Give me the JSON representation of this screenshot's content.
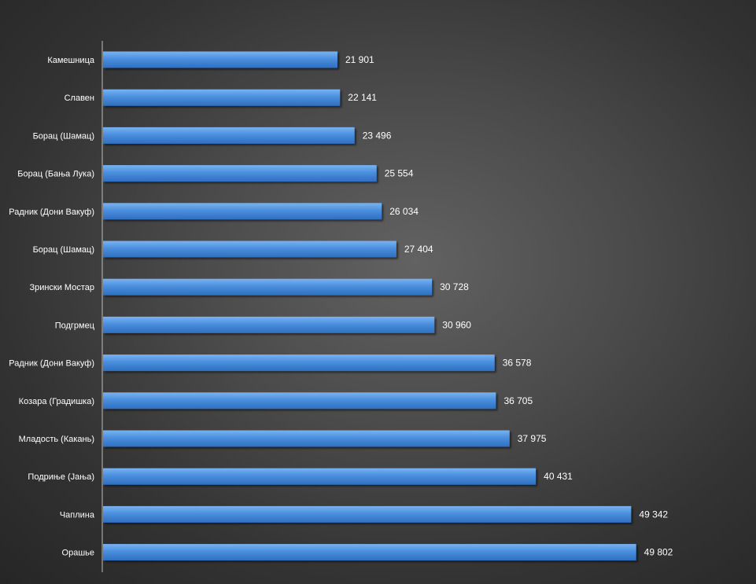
{
  "chart_data": {
    "type": "bar",
    "orientation": "horizontal",
    "title": "",
    "xlabel": "",
    "ylabel": "",
    "xlim": [
      0,
      58000
    ],
    "grid": false,
    "legend": "none",
    "bar_color": "#4a8fde",
    "categories": [
      "Камешница",
      "Славен",
      "Борац (Шамац)",
      "Борац (Бања Лука)",
      "Радник (Дони Вакуф)",
      "Борац (Шамац)",
      "Зрински Мостар",
      "Подгрмец",
      "Радник (Дони Вакуф)",
      "Козара (Градишка)",
      "Младость (Какань)",
      "Подриње (Јања)",
      "Чаплина",
      "Орашье"
    ],
    "values": [
      21901,
      22141,
      23496,
      25554,
      26034,
      27404,
      30728,
      30960,
      36578,
      36705,
      37975,
      40431,
      49342,
      49802
    ],
    "value_labels": [
      "21 901",
      "22 141",
      "23 496",
      "25 554",
      "26 034",
      "27 404",
      "30 728",
      "30 960",
      "36 578",
      "36 705",
      "37 975",
      "40 431",
      "49 342",
      "49 802"
    ]
  }
}
